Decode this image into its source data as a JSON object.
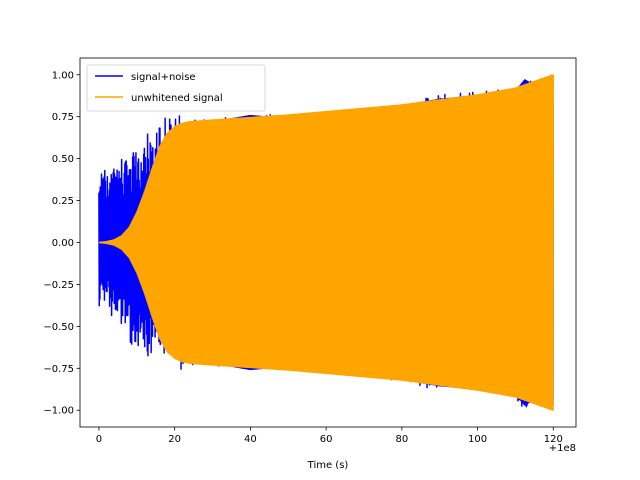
{
  "chart_data": {
    "type": "line",
    "title": "",
    "xlabel": "Time (s)",
    "ylabel": "",
    "x_offset_label": "+1e8",
    "xlim": [
      -5,
      126
    ],
    "ylim": [
      -1.1,
      1.1
    ],
    "xticks": [
      0,
      20,
      40,
      60,
      80,
      100,
      120
    ],
    "yticks": [
      -1.0,
      -0.75,
      -0.5,
      -0.25,
      0.0,
      0.25,
      0.5,
      0.75,
      1.0
    ],
    "xtick_labels": [
      "0",
      "20",
      "40",
      "60",
      "80",
      "100",
      "120"
    ],
    "ytick_labels": [
      "−1.00",
      "−0.75",
      "−0.50",
      "−0.25",
      "0.00",
      "0.25",
      "0.50",
      "0.75",
      "1.00"
    ],
    "grid": false,
    "legend_position": "upper-left",
    "series": [
      {
        "name": "signal+noise",
        "color": "#0000ff",
        "kind": "noisy-chirp",
        "x_start": 0,
        "x_end": 120,
        "envelope": {
          "x": [
            0,
            2,
            4,
            6,
            8,
            10,
            12,
            14,
            16,
            18,
            20,
            22,
            24,
            30,
            40,
            50,
            60,
            70,
            80,
            90,
            100,
            110,
            112.5,
            115,
            120
          ],
          "y": [
            0.35,
            0.4,
            0.42,
            0.45,
            0.52,
            0.55,
            0.58,
            0.6,
            0.62,
            0.66,
            0.7,
            0.72,
            0.73,
            0.74,
            0.78,
            0.76,
            0.78,
            0.8,
            0.84,
            0.88,
            0.9,
            0.93,
            1.0,
            0.96,
            1.0
          ]
        }
      },
      {
        "name": "unwhitened signal",
        "color": "#ffa500",
        "kind": "chirp",
        "x_start": 0,
        "x_end": 120,
        "envelope": {
          "x": [
            0,
            2,
            4,
            6,
            8,
            10,
            12,
            14,
            16,
            18,
            20,
            22,
            24,
            30,
            40,
            50,
            60,
            70,
            80,
            90,
            100,
            110,
            115,
            120
          ],
          "y": [
            0.0,
            0.005,
            0.015,
            0.04,
            0.09,
            0.18,
            0.3,
            0.44,
            0.57,
            0.65,
            0.69,
            0.71,
            0.72,
            0.73,
            0.745,
            0.76,
            0.78,
            0.8,
            0.82,
            0.85,
            0.88,
            0.92,
            0.96,
            1.0
          ]
        }
      }
    ]
  }
}
